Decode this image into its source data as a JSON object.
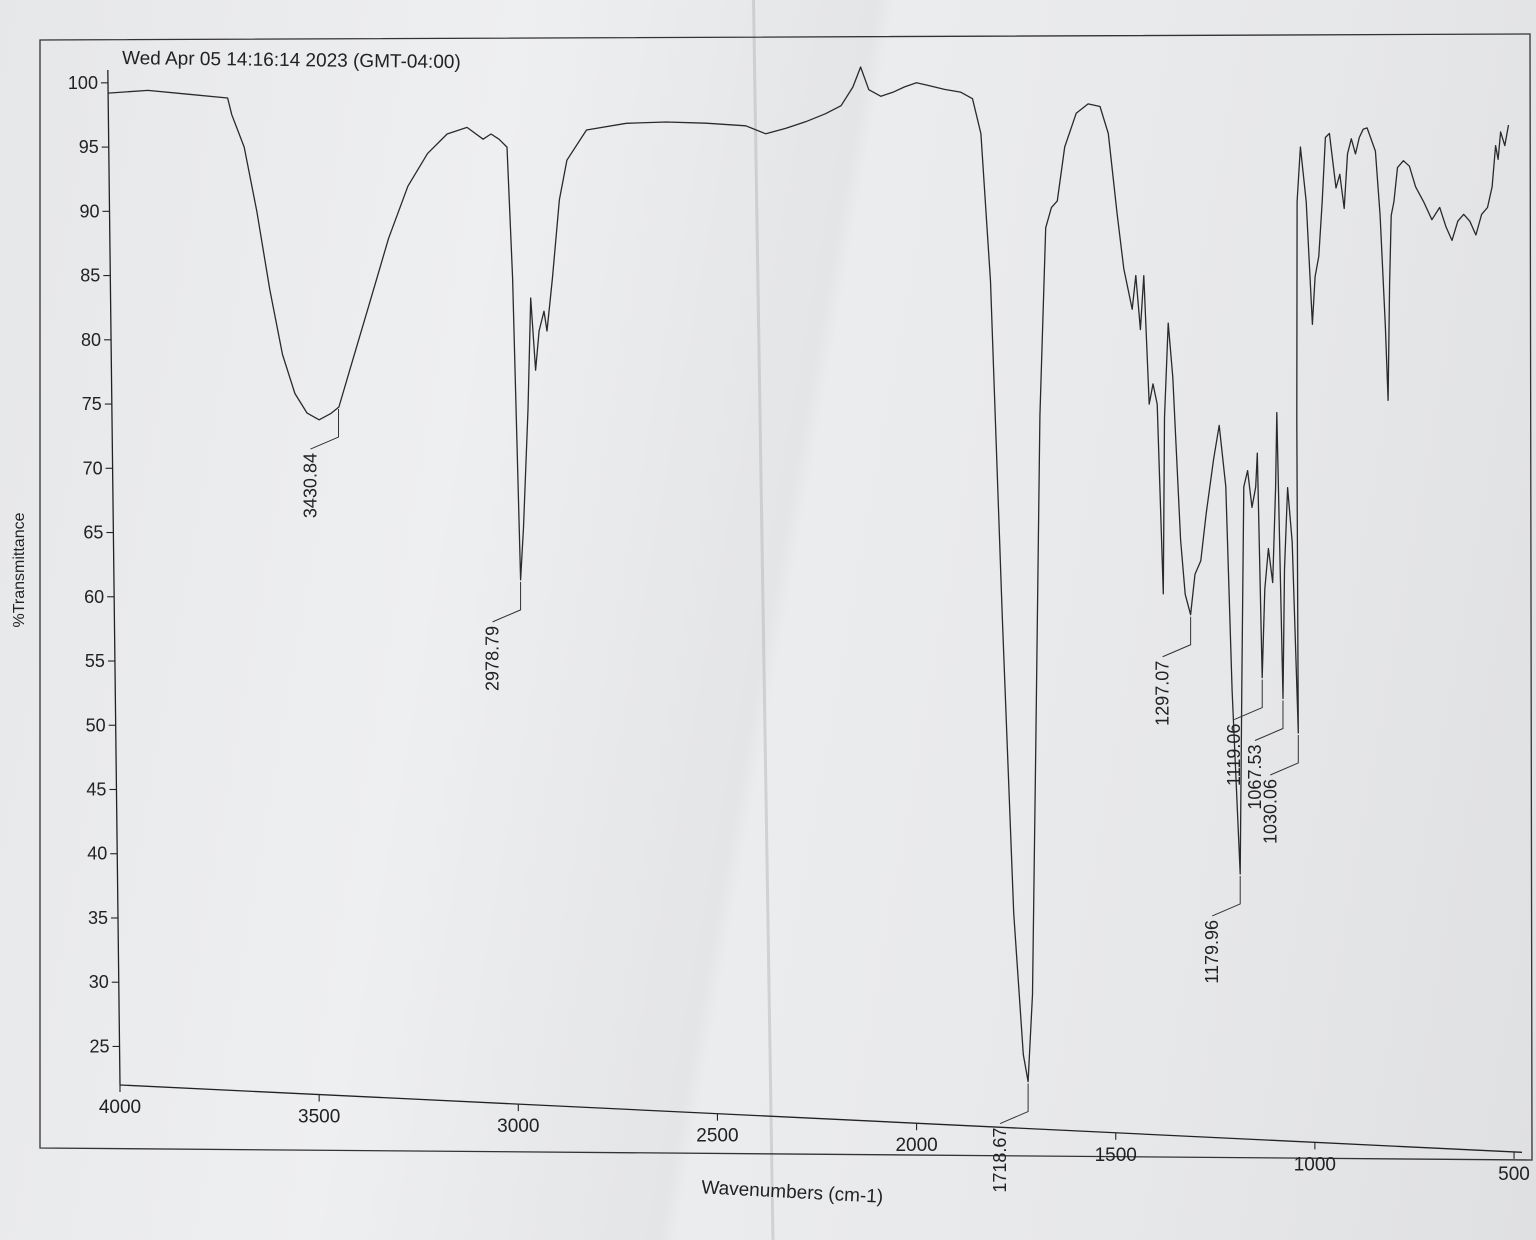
{
  "chart_data": {
    "type": "line",
    "title": "Wed Apr 05 14:16:14 2023 (GMT-04:00)",
    "xlabel": "Wavenumbers (cm-1)",
    "ylabel": "%Transmittance",
    "xlim": [
      4000,
      480
    ],
    "ylim": [
      22,
      101
    ],
    "x_ticks": [
      4000,
      3500,
      3000,
      2500,
      2000,
      1500,
      1000,
      500
    ],
    "y_ticks": [
      25,
      30,
      35,
      40,
      45,
      50,
      55,
      60,
      65,
      70,
      75,
      80,
      85,
      90,
      95,
      100
    ],
    "grid": false,
    "series": [
      {
        "points": [
          [
            4000,
            99.2
          ],
          [
            3900,
            99.4
          ],
          [
            3800,
            99.1
          ],
          [
            3700,
            98.8
          ],
          [
            3690,
            97.5
          ],
          [
            3660,
            95
          ],
          [
            3630,
            90
          ],
          [
            3600,
            84
          ],
          [
            3570,
            79
          ],
          [
            3540,
            76
          ],
          [
            3510,
            74.5
          ],
          [
            3480,
            74
          ],
          [
            3450,
            74.5
          ],
          [
            3430,
            75
          ],
          [
            3400,
            78
          ],
          [
            3350,
            83
          ],
          [
            3300,
            88
          ],
          [
            3250,
            92
          ],
          [
            3200,
            94.5
          ],
          [
            3150,
            96
          ],
          [
            3100,
            96.5
          ],
          [
            3060,
            95.6
          ],
          [
            3040,
            96
          ],
          [
            3020,
            95.6
          ],
          [
            3000,
            95
          ],
          [
            2990,
            85
          ],
          [
            2978.79,
            62
          ],
          [
            2970,
            66
          ],
          [
            2955,
            75
          ],
          [
            2945,
            83.5
          ],
          [
            2935,
            78
          ],
          [
            2925,
            81
          ],
          [
            2912,
            82.5
          ],
          [
            2905,
            81
          ],
          [
            2890,
            85
          ],
          [
            2870,
            91
          ],
          [
            2850,
            94
          ],
          [
            2800,
            96.3
          ],
          [
            2700,
            96.8
          ],
          [
            2600,
            96.9
          ],
          [
            2500,
            96.8
          ],
          [
            2400,
            96.6
          ],
          [
            2350,
            96.0
          ],
          [
            2300,
            96.4
          ],
          [
            2250,
            96.9
          ],
          [
            2200,
            97.5
          ],
          [
            2160,
            98.1
          ],
          [
            2130,
            99.5
          ],
          [
            2110,
            101
          ],
          [
            2090,
            99.3
          ],
          [
            2060,
            98.8
          ],
          [
            2030,
            99.1
          ],
          [
            2000,
            99.5
          ],
          [
            1970,
            99.8
          ],
          [
            1940,
            99.6
          ],
          [
            1900,
            99.3
          ],
          [
            1860,
            99.1
          ],
          [
            1830,
            98.6
          ],
          [
            1810,
            96
          ],
          [
            1790,
            85
          ],
          [
            1770,
            60
          ],
          [
            1750,
            38
          ],
          [
            1730,
            27.5
          ],
          [
            1718.67,
            25.5
          ],
          [
            1705,
            32
          ],
          [
            1690,
            50
          ],
          [
            1670,
            75
          ],
          [
            1650,
            89
          ],
          [
            1635,
            90.5
          ],
          [
            1620,
            91
          ],
          [
            1600,
            95
          ],
          [
            1570,
            97.5
          ],
          [
            1540,
            98.2
          ],
          [
            1510,
            98
          ],
          [
            1490,
            96
          ],
          [
            1470,
            90
          ],
          [
            1455,
            86
          ],
          [
            1445,
            84.5
          ],
          [
            1435,
            83
          ],
          [
            1425,
            85.5
          ],
          [
            1415,
            81.5
          ],
          [
            1405,
            85.5
          ],
          [
            1395,
            76
          ],
          [
            1385,
            77.5
          ],
          [
            1375,
            76
          ],
          [
            1365,
            62
          ],
          [
            1357,
            75
          ],
          [
            1345,
            82
          ],
          [
            1335,
            78
          ],
          [
            1320,
            66
          ],
          [
            1310,
            62
          ],
          [
            1297.07,
            60.5
          ],
          [
            1285,
            63.5
          ],
          [
            1270,
            64.5
          ],
          [
            1255,
            68
          ],
          [
            1235,
            72
          ],
          [
            1220,
            74.5
          ],
          [
            1205,
            70
          ],
          [
            1195,
            55
          ],
          [
            1179.96,
            41.5
          ],
          [
            1170,
            56
          ],
          [
            1160,
            70
          ],
          [
            1150,
            71.2
          ],
          [
            1140,
            68.5
          ],
          [
            1130,
            70
          ],
          [
            1125,
            72.5
          ],
          [
            1119.06,
            56
          ],
          [
            1110,
            62.5
          ],
          [
            1100,
            65.5
          ],
          [
            1090,
            63
          ],
          [
            1080,
            70
          ],
          [
            1075,
            75.5
          ],
          [
            1067.53,
            54.5
          ],
          [
            1060,
            64
          ],
          [
            1050,
            70
          ],
          [
            1040,
            66
          ],
          [
            1030.06,
            52
          ],
          [
            1025,
            75
          ],
          [
            1018,
            91
          ],
          [
            1008,
            95
          ],
          [
            995,
            91
          ],
          [
            983,
            82
          ],
          [
            975,
            85.5
          ],
          [
            965,
            87
          ],
          [
            955,
            91
          ],
          [
            945,
            95.7
          ],
          [
            935,
            96
          ],
          [
            920,
            92
          ],
          [
            910,
            93
          ],
          [
            900,
            90.5
          ],
          [
            890,
            94.5
          ],
          [
            880,
            95.6
          ],
          [
            870,
            94.5
          ],
          [
            860,
            95.7
          ],
          [
            850,
            96.3
          ],
          [
            840,
            96.4
          ],
          [
            820,
            94.7
          ],
          [
            810,
            90
          ],
          [
            800,
            82
          ],
          [
            795,
            76.5
          ],
          [
            788,
            85
          ],
          [
            782,
            90
          ],
          [
            775,
            91
          ],
          [
            765,
            93.5
          ],
          [
            750,
            94
          ],
          [
            735,
            93.6
          ],
          [
            720,
            92.1
          ],
          [
            700,
            91.0
          ],
          [
            680,
            89.7
          ],
          [
            660,
            90.6
          ],
          [
            645,
            89.2
          ],
          [
            630,
            88.2
          ],
          [
            615,
            89.6
          ],
          [
            600,
            90.1
          ],
          [
            585,
            89.6
          ],
          [
            570,
            88.6
          ],
          [
            555,
            90.1
          ],
          [
            540,
            90.6
          ],
          [
            528,
            92.1
          ],
          [
            518,
            95.1
          ],
          [
            512,
            94.1
          ],
          [
            505,
            96.1
          ],
          [
            495,
            95.1
          ],
          [
            485,
            96.6
          ]
        ]
      }
    ],
    "annotations": [
      {
        "label": "3430.84",
        "x": 3430.84,
        "y": 75
      },
      {
        "label": "2978.79",
        "x": 2978.79,
        "y": 62
      },
      {
        "label": "1718.67",
        "x": 1718.67,
        "y": 25.5
      },
      {
        "label": "1297.07",
        "x": 1297.07,
        "y": 60.5
      },
      {
        "label": "1179.96",
        "x": 1179.96,
        "y": 41.5
      },
      {
        "label": "1119.06",
        "x": 1119.06,
        "y": 56
      },
      {
        "label": "1067.53",
        "x": 1067.53,
        "y": 54.5
      },
      {
        "label": "1030.06",
        "x": 1030.06,
        "y": 52
      }
    ]
  }
}
